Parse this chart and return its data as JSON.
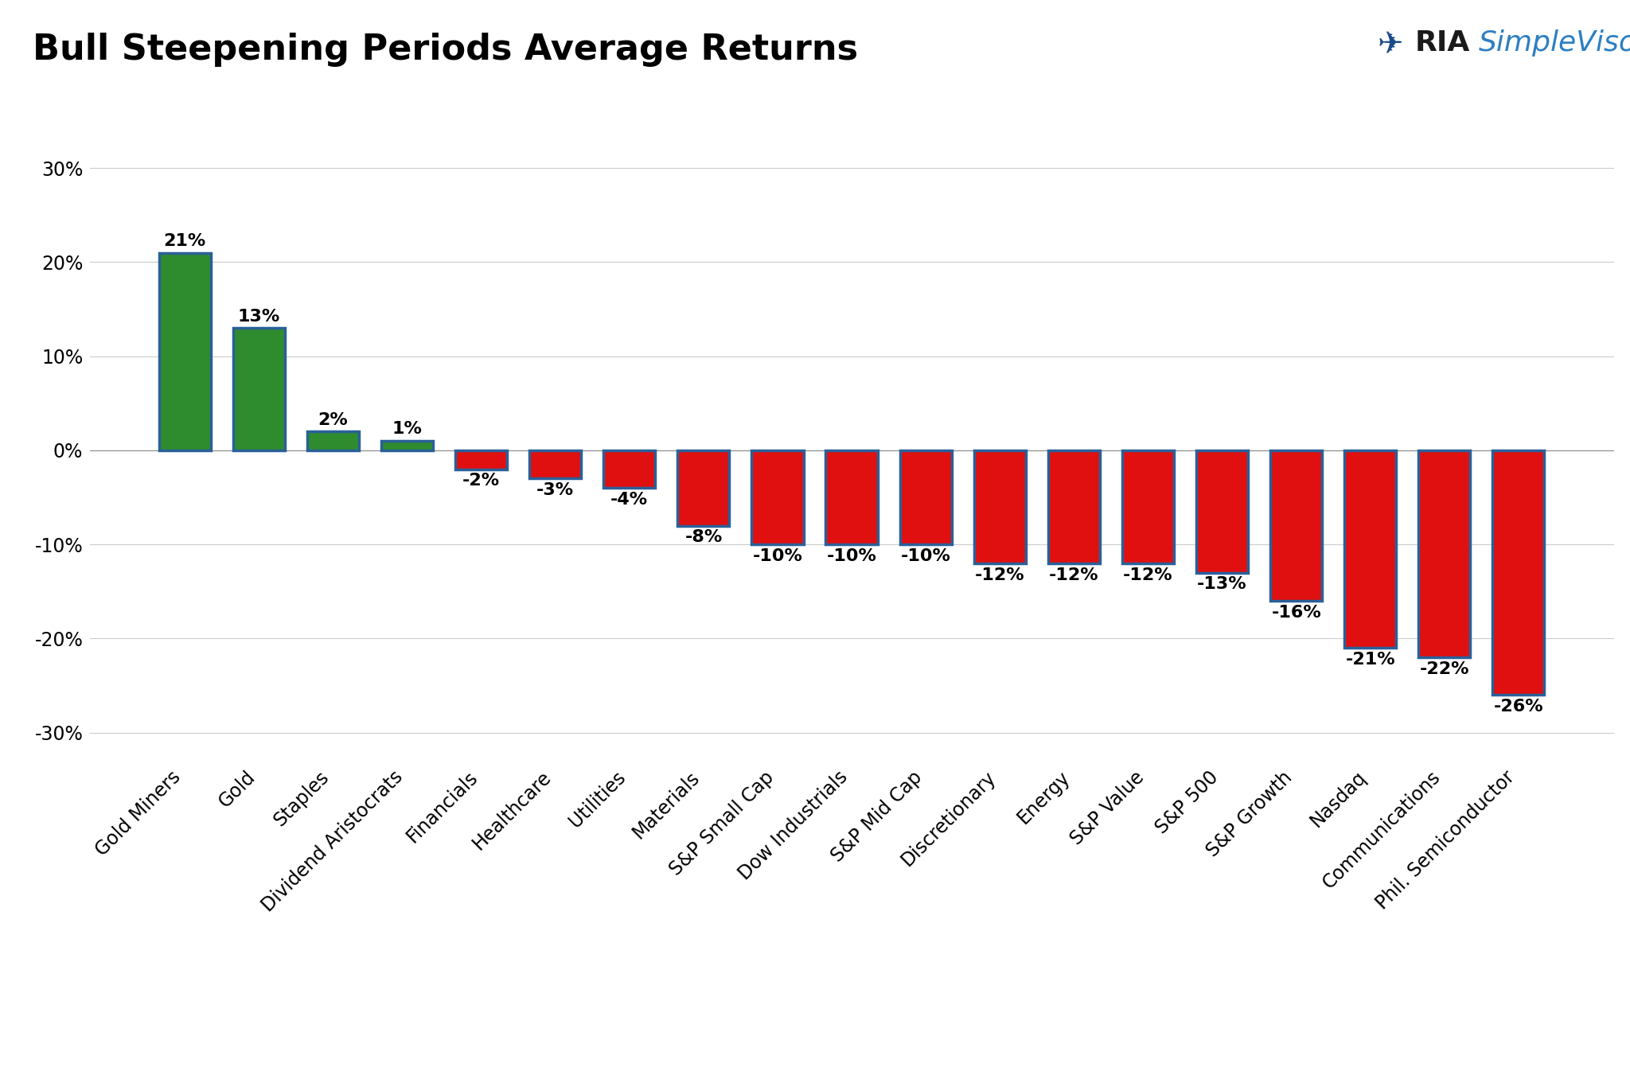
{
  "title": "Bull Steepening Periods Average Returns",
  "categories": [
    "Gold Miners",
    "Gold",
    "Staples",
    "Dividend Aristocrats",
    "Financials",
    "Healthcare",
    "Utilities",
    "Materials",
    "S&P Small Cap",
    "Dow Industrials",
    "S&P Mid Cap",
    "Discretionary",
    "Energy",
    "S&P Value",
    "S&P 500",
    "S&P Growth",
    "Nasdaq",
    "Communications",
    "Phil. Semiconductor"
  ],
  "values": [
    21,
    13,
    2,
    1,
    -2,
    -3,
    -4,
    -8,
    -10,
    -10,
    -10,
    -12,
    -12,
    -12,
    -13,
    -16,
    -21,
    -22,
    -26
  ],
  "bar_color_pos": "#2e8b2e",
  "bar_color_neg": "#e01010",
  "bar_edge_color": "#2a6099",
  "bar_edge_width": 2.5,
  "ylim": [
    -33,
    34
  ],
  "yticks": [
    30,
    20,
    10,
    0,
    -10,
    -20,
    -30
  ],
  "title_fontsize": 32,
  "label_fontsize": 16,
  "tick_fontsize": 17,
  "background_color": "#ffffff",
  "grid_color": "#cccccc",
  "ria_color": "#1a1a1a",
  "simplevisor_color": "#2d7fc1"
}
